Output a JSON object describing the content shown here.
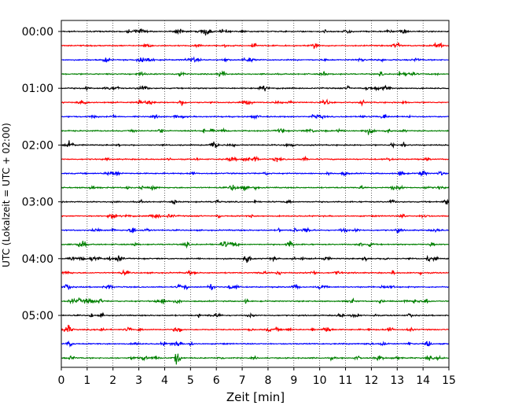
{
  "chart_data": {
    "type": "line",
    "title": "",
    "xlabel": "Zeit  [min]",
    "ylabel": "UTC (Lokalzeit = UTC + 02:00)",
    "xlim": [
      0,
      15
    ],
    "xticks": [
      "0",
      "1",
      "2",
      "3",
      "4",
      "5",
      "6",
      "7",
      "8",
      "9",
      "10",
      "11",
      "12",
      "13",
      "14",
      "15"
    ],
    "yticks": [
      "00:00",
      "01:00",
      "02:00",
      "03:00",
      "04:00",
      "05:00"
    ],
    "grid": "vertical-dotted",
    "row_count": 24,
    "row_interval_min": 15,
    "colors": [
      "#000000",
      "#ff0000",
      "#0000ff",
      "#008000"
    ],
    "events": [
      {
        "row": 16,
        "x": 7.2,
        "amp": 1.0
      },
      {
        "row": 21,
        "x": 12.7,
        "amp": 0.55
      },
      {
        "row": 22,
        "x": 14.2,
        "amp": 0.55
      },
      {
        "row": 20,
        "x": 10.8,
        "amp": 0.5
      },
      {
        "row": 23,
        "x": 0.4,
        "amp": 0.5
      },
      {
        "row": 21,
        "x": 2.6,
        "amp": 0.45
      }
    ]
  }
}
